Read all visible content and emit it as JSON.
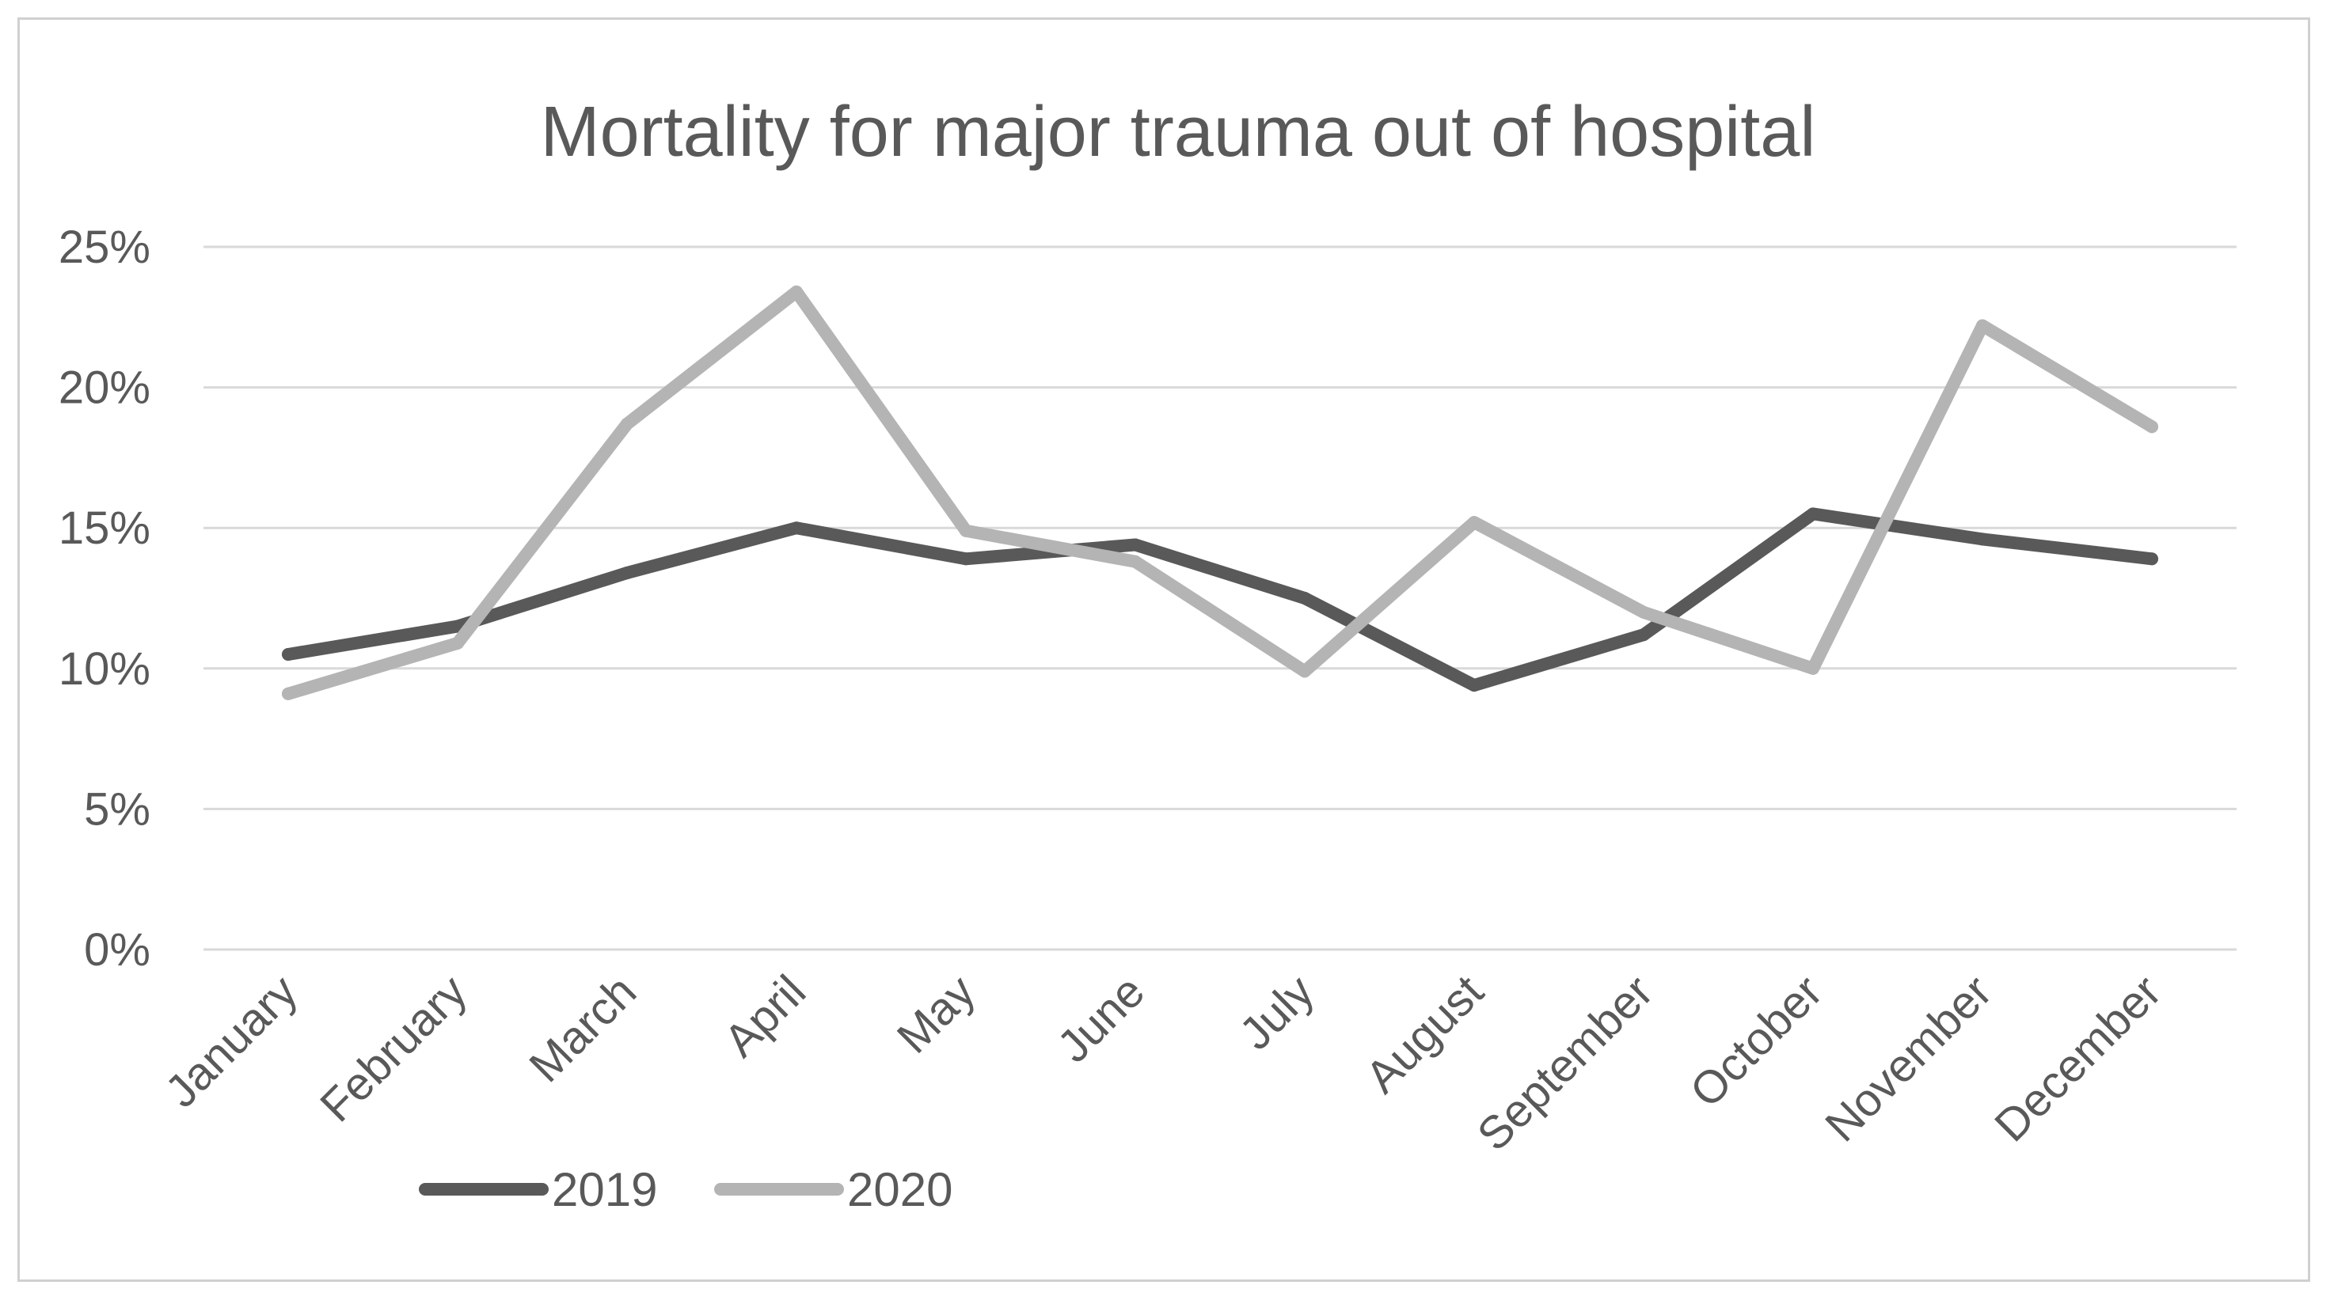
{
  "chart_data": {
    "type": "line",
    "title": "Mortality for major trauma out of hospital",
    "xlabel": "",
    "ylabel": "",
    "categories": [
      "January",
      "February",
      "March",
      "April",
      "May",
      "June",
      "July",
      "August",
      "September",
      "October",
      "November",
      "December"
    ],
    "ylim": [
      0,
      25
    ],
    "yticks": [
      "0%",
      "5%",
      "10%",
      "15%",
      "20%",
      "25%"
    ],
    "grid": "horizontal",
    "legend_position": "bottom-left",
    "series": [
      {
        "name": "2019",
        "color": "#595959",
        "values": [
          10.5,
          11.5,
          13.4,
          15.0,
          13.9,
          14.4,
          12.5,
          9.4,
          11.2,
          15.5,
          14.6,
          13.9
        ]
      },
      {
        "name": "2020",
        "color": "#b4b4b4",
        "values": [
          9.1,
          10.9,
          18.7,
          23.4,
          14.9,
          13.8,
          9.9,
          15.2,
          12.0,
          10.0,
          22.2,
          18.6
        ]
      }
    ]
  }
}
